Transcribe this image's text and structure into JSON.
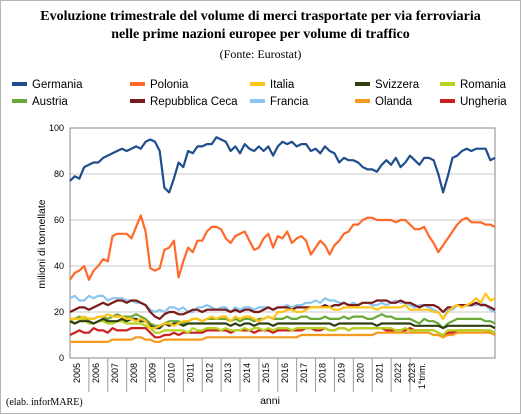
{
  "title_line1": "Evoluzione trimestrale del volume di merci trasportate per via ferroviaria",
  "title_line2": "nelle prime nazioni europee per volume di traffico",
  "subtitle": "(Fonte: Eurostat)",
  "credit": "(elab. inforMARE)",
  "chart_data": {
    "type": "line",
    "title": "Evoluzione trimestrale del volume di merci trasportate per via ferroviaria nelle prime nazioni europee per volume di traffico",
    "xlabel": "anni",
    "ylabel": "milioni di tonnellate",
    "ylim": [
      0,
      100
    ],
    "yticks": [
      0,
      20,
      40,
      60,
      80,
      100
    ],
    "grid": true,
    "legend_position": "top",
    "x_tick_labels": [
      "2005",
      "2006",
      "2007",
      "2008",
      "2009",
      "2010",
      "2011",
      "2012",
      "2013",
      "2014",
      "2015",
      "2016",
      "2017",
      "2018",
      "2019",
      "2020",
      "2021",
      "2022",
      "2023 1°trim."
    ],
    "series": [
      {
        "name": "Germania",
        "color": "#1f4e8c",
        "values": [
          77,
          79,
          78,
          83,
          84,
          85,
          85,
          87,
          88,
          89,
          90,
          91,
          90,
          91,
          92,
          91,
          94,
          95,
          94,
          90,
          74,
          72,
          78,
          85,
          83,
          90,
          89,
          92,
          92,
          93,
          93,
          96,
          95,
          94,
          90,
          92,
          89,
          93,
          91,
          90,
          92,
          90,
          92,
          88,
          92,
          94,
          93,
          94,
          92,
          93,
          93,
          90,
          91,
          89,
          92,
          90,
          89,
          85,
          87,
          86,
          86,
          85,
          83,
          82,
          82,
          81,
          84,
          86,
          84,
          87,
          83,
          85,
          88,
          86,
          84,
          87,
          87,
          86,
          80,
          72,
          79,
          87,
          88,
          90,
          91,
          90,
          91,
          91,
          91,
          86,
          87
        ]
      },
      {
        "name": "Polonia",
        "color": "#ff6a2b",
        "values": [
          34,
          37,
          38,
          40,
          34,
          38,
          40,
          43,
          42,
          53,
          54,
          54,
          54,
          52,
          57,
          62,
          55,
          39,
          38,
          39,
          47,
          48,
          51,
          35,
          42,
          48,
          46,
          51,
          51,
          55,
          57,
          57,
          56,
          52,
          50,
          53,
          54,
          55,
          51,
          47,
          48,
          52,
          54,
          48,
          53,
          52,
          55,
          50,
          52,
          53,
          51,
          45,
          48,
          51,
          49,
          45,
          49,
          51,
          54,
          55,
          58,
          58,
          60,
          61,
          61,
          60,
          60,
          60,
          60,
          59,
          60,
          60,
          58,
          56,
          56,
          57,
          53,
          50,
          46,
          49,
          52,
          55,
          58,
          60,
          61,
          59,
          59,
          59,
          58,
          58,
          57
        ]
      },
      {
        "name": "Italia",
        "color": "#ffc41a",
        "values": [
          17,
          17,
          17,
          18,
          17,
          17,
          18,
          18,
          19,
          18,
          18,
          18,
          17,
          17,
          16,
          17,
          16,
          13,
          13,
          14,
          15,
          15,
          14,
          15,
          16,
          16,
          17,
          17,
          16,
          17,
          18,
          17,
          18,
          18,
          16,
          18,
          17,
          18,
          18,
          17,
          16,
          17,
          18,
          17,
          20,
          20,
          21,
          21,
          20,
          20,
          21,
          22,
          22,
          22,
          22,
          22,
          21,
          21,
          22,
          22,
          22,
          22,
          22,
          22,
          22,
          21,
          22,
          22,
          22,
          22,
          22,
          23,
          21,
          21,
          21,
          21,
          21,
          20,
          20,
          17,
          20,
          22,
          23,
          22,
          23,
          24,
          26,
          24,
          28,
          25,
          26
        ]
      },
      {
        "name": "Svizzera",
        "color": "#2f3f12",
        "values": [
          16,
          15,
          16,
          16,
          16,
          15,
          16,
          17,
          16,
          16,
          16,
          17,
          16,
          17,
          17,
          16,
          16,
          14,
          13,
          13,
          15,
          14,
          15,
          15,
          14,
          15,
          15,
          15,
          15,
          15,
          15,
          15,
          15,
          15,
          14,
          15,
          14,
          15,
          15,
          14,
          15,
          15,
          15,
          14,
          15,
          15,
          15,
          15,
          15,
          15,
          15,
          15,
          15,
          15,
          15,
          15,
          14,
          15,
          15,
          15,
          15,
          15,
          15,
          15,
          15,
          14,
          15,
          15,
          15,
          15,
          15,
          15,
          15,
          14,
          14,
          14,
          14,
          14,
          14,
          13,
          14,
          14,
          14,
          14,
          14,
          14,
          14,
          14,
          14,
          14,
          13
        ]
      },
      {
        "name": "Romania",
        "color": "#b6d320",
        "values": [
          17,
          15,
          16,
          17,
          15,
          15,
          16,
          16,
          15,
          15,
          16,
          16,
          15,
          15,
          15,
          15,
          14,
          13,
          11,
          11,
          12,
          12,
          12,
          12,
          12,
          11,
          13,
          12,
          12,
          13,
          13,
          13,
          12,
          13,
          12,
          12,
          12,
          13,
          12,
          13,
          13,
          12,
          13,
          12,
          13,
          13,
          13,
          12,
          13,
          13,
          13,
          13,
          13,
          13,
          13,
          12,
          12,
          13,
          13,
          12,
          13,
          13,
          13,
          13,
          13,
          13,
          13,
          13,
          13,
          12,
          12,
          13,
          12,
          12,
          12,
          12,
          12,
          12,
          11,
          10,
          12,
          12,
          12,
          12,
          12,
          12,
          12,
          12,
          12,
          12,
          11
        ]
      },
      {
        "name": "Austria",
        "color": "#6aa83a",
        "values": [
          17,
          17,
          18,
          17,
          17,
          17,
          18,
          18,
          17,
          18,
          19,
          18,
          18,
          18,
          19,
          18,
          17,
          15,
          14,
          14,
          15,
          16,
          16,
          16,
          15,
          16,
          17,
          17,
          16,
          17,
          17,
          17,
          17,
          17,
          16,
          17,
          16,
          17,
          17,
          16,
          17,
          17,
          18,
          17,
          17,
          17,
          18,
          17,
          17,
          18,
          18,
          17,
          17,
          17,
          18,
          17,
          17,
          17,
          18,
          17,
          18,
          18,
          18,
          17,
          17,
          18,
          19,
          18,
          18,
          17,
          17,
          17,
          17,
          16,
          15,
          17,
          16,
          16,
          15,
          13,
          15,
          16,
          17,
          17,
          17,
          17,
          17,
          17,
          16,
          16,
          15
        ]
      },
      {
        "name": "Repubblica Ceca",
        "color": "#7a1a1a",
        "values": [
          20,
          21,
          22,
          22,
          21,
          22,
          23,
          24,
          23,
          24,
          25,
          25,
          24,
          25,
          25,
          24,
          23,
          20,
          18,
          17,
          19,
          20,
          20,
          19,
          19,
          20,
          21,
          21,
          20,
          21,
          21,
          21,
          21,
          21,
          20,
          21,
          20,
          21,
          21,
          20,
          20,
          21,
          22,
          21,
          22,
          22,
          22,
          21,
          22,
          22,
          22,
          22,
          22,
          22,
          23,
          22,
          23,
          23,
          24,
          23,
          23,
          23,
          24,
          24,
          24,
          25,
          25,
          25,
          24,
          24,
          25,
          24,
          24,
          23,
          22,
          23,
          23,
          23,
          22,
          20,
          22,
          22,
          23,
          23,
          23,
          23,
          24,
          23,
          23,
          22,
          21
        ]
      },
      {
        "name": "Francia",
        "color": "#8cc6ef",
        "values": [
          26,
          27,
          25,
          25,
          27,
          26,
          27,
          27,
          25,
          26,
          26,
          26,
          25,
          25,
          24,
          24,
          23,
          21,
          20,
          21,
          20,
          22,
          22,
          21,
          22,
          20,
          20,
          22,
          22,
          23,
          22,
          21,
          22,
          22,
          20,
          22,
          21,
          22,
          22,
          21,
          22,
          22,
          22,
          21,
          22,
          22,
          23,
          22,
          23,
          23,
          24,
          24,
          25,
          24,
          26,
          25,
          25,
          24,
          24,
          23,
          24,
          23,
          24,
          24,
          23,
          23,
          24,
          23,
          24,
          25,
          24,
          24,
          23,
          22,
          23,
          23,
          22,
          21,
          20,
          17,
          21,
          21,
          23,
          23,
          23,
          23,
          23,
          24,
          23,
          21,
          20
        ]
      },
      {
        "name": "Olanda",
        "color": "#f59a1e",
        "values": [
          7,
          7,
          7,
          7,
          7,
          7,
          7,
          7,
          7,
          8,
          8,
          8,
          8,
          8,
          9,
          9,
          8,
          8,
          7,
          7,
          8,
          8,
          8,
          8,
          8,
          8,
          8,
          8,
          8,
          9,
          9,
          9,
          9,
          9,
          9,
          9,
          9,
          9,
          9,
          9,
          9,
          9,
          9,
          9,
          9,
          9,
          9,
          9,
          9,
          10,
          10,
          10,
          10,
          10,
          10,
          10,
          10,
          10,
          10,
          10,
          10,
          10,
          10,
          10,
          10,
          11,
          11,
          11,
          11,
          11,
          11,
          11,
          11,
          11,
          11,
          11,
          11,
          10,
          10,
          9,
          10,
          10,
          11,
          11,
          11,
          11,
          11,
          11,
          11,
          11,
          10
        ]
      },
      {
        "name": "Ungheria",
        "color": "#cc1f1f",
        "values": [
          10,
          11,
          12,
          11,
          11,
          13,
          12,
          12,
          11,
          13,
          12,
          12,
          12,
          13,
          13,
          13,
          13,
          11,
          9,
          9,
          10,
          10,
          11,
          10,
          11,
          11,
          11,
          11,
          11,
          12,
          12,
          12,
          12,
          12,
          11,
          12,
          12,
          12,
          12,
          11,
          12,
          12,
          12,
          11,
          12,
          12,
          12,
          12,
          12,
          12,
          13,
          13,
          12,
          12,
          13,
          12,
          12,
          13,
          13,
          12,
          13,
          13,
          13,
          13,
          13,
          13,
          13,
          12,
          12,
          12,
          12,
          12,
          13,
          12,
          12,
          12,
          12,
          12,
          11,
          9,
          11,
          11,
          12,
          12,
          12,
          12,
          12,
          12,
          12,
          11,
          11
        ]
      }
    ]
  }
}
